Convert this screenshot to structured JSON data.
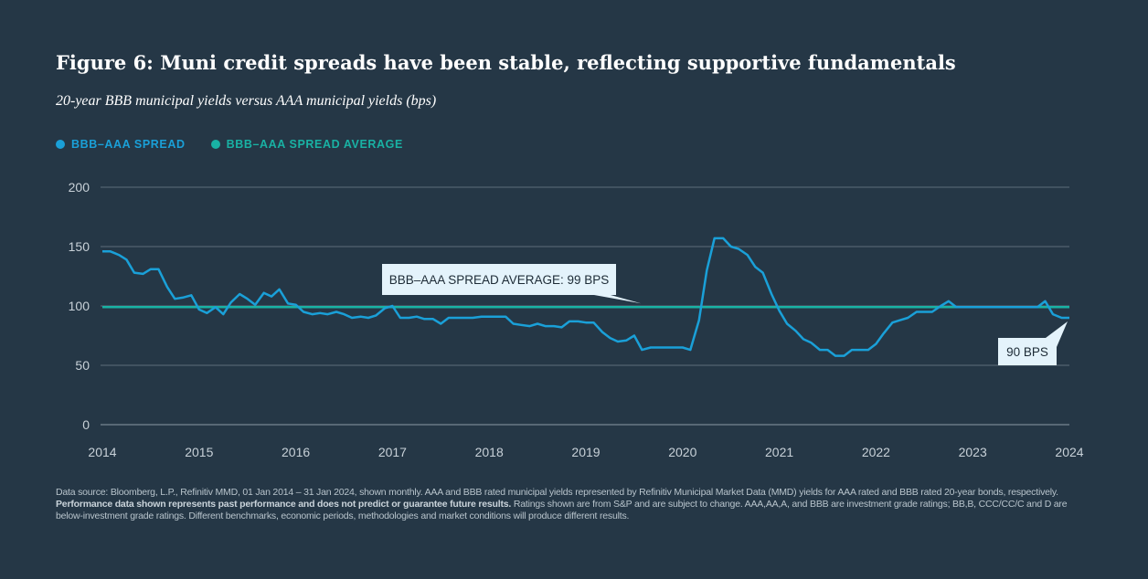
{
  "header": {
    "title": "Figure 6: Muni credit spreads have been stable, reflecting supportive fundamentals",
    "subtitle": "20-year BBB municipal yields versus AAA municipal yields (bps)"
  },
  "legend": [
    {
      "label": "BBB–AAA SPREAD",
      "color": "#1aa0d8"
    },
    {
      "label": "BBB–AAA SPREAD AVERAGE",
      "color": "#19b2a4"
    }
  ],
  "callouts": {
    "average_label": "BBB–AAA SPREAD AVERAGE: 99 BPS",
    "last_value_label": "90 BPS"
  },
  "chart_data": {
    "type": "line",
    "title": "Figure 6: Muni credit spreads have been stable, reflecting supportive fundamentals",
    "ylabel": "bps",
    "xlabel": "",
    "ylim": [
      0,
      200
    ],
    "yticks": [
      0,
      50,
      100,
      150,
      200
    ],
    "xlim": [
      2014,
      2024
    ],
    "xticks": [
      "2014",
      "2015",
      "2016",
      "2017",
      "2018",
      "2019",
      "2020",
      "2021",
      "2022",
      "2023",
      "2024"
    ],
    "grid": true,
    "series": [
      {
        "name": "BBB–AAA SPREAD",
        "color": "#1aa0d8",
        "points": [
          [
            2014.0,
            146
          ],
          [
            2014.08,
            146
          ],
          [
            2014.17,
            143
          ],
          [
            2014.25,
            139
          ],
          [
            2014.33,
            128
          ],
          [
            2014.42,
            127
          ],
          [
            2014.5,
            131
          ],
          [
            2014.58,
            131
          ],
          [
            2014.67,
            116
          ],
          [
            2014.75,
            106
          ],
          [
            2014.83,
            107
          ],
          [
            2014.92,
            109
          ],
          [
            2015.0,
            97
          ],
          [
            2015.08,
            94
          ],
          [
            2015.17,
            99
          ],
          [
            2015.25,
            93
          ],
          [
            2015.33,
            103
          ],
          [
            2015.42,
            110
          ],
          [
            2015.5,
            106
          ],
          [
            2015.58,
            101
          ],
          [
            2015.67,
            111
          ],
          [
            2015.75,
            108
          ],
          [
            2015.83,
            114
          ],
          [
            2015.92,
            102
          ],
          [
            2016.0,
            101
          ],
          [
            2016.08,
            95
          ],
          [
            2016.17,
            93
          ],
          [
            2016.25,
            94
          ],
          [
            2016.33,
            93
          ],
          [
            2016.42,
            95
          ],
          [
            2016.5,
            93
          ],
          [
            2016.58,
            90
          ],
          [
            2016.67,
            91
          ],
          [
            2016.75,
            90
          ],
          [
            2016.83,
            92
          ],
          [
            2016.92,
            98
          ],
          [
            2017.0,
            100
          ],
          [
            2017.08,
            90
          ],
          [
            2017.17,
            90
          ],
          [
            2017.25,
            91
          ],
          [
            2017.33,
            89
          ],
          [
            2017.42,
            89
          ],
          [
            2017.5,
            85
          ],
          [
            2017.58,
            90
          ],
          [
            2017.67,
            90
          ],
          [
            2017.75,
            90
          ],
          [
            2017.83,
            90
          ],
          [
            2017.92,
            91
          ],
          [
            2018.0,
            91
          ],
          [
            2018.08,
            91
          ],
          [
            2018.17,
            91
          ],
          [
            2018.25,
            85
          ],
          [
            2018.33,
            84
          ],
          [
            2018.42,
            83
          ],
          [
            2018.5,
            85
          ],
          [
            2018.58,
            83
          ],
          [
            2018.67,
            83
          ],
          [
            2018.75,
            82
          ],
          [
            2018.83,
            87
          ],
          [
            2018.92,
            87
          ],
          [
            2019.0,
            86
          ],
          [
            2019.08,
            86
          ],
          [
            2019.17,
            78
          ],
          [
            2019.25,
            73
          ],
          [
            2019.33,
            70
          ],
          [
            2019.42,
            71
          ],
          [
            2019.5,
            75
          ],
          [
            2019.58,
            63
          ],
          [
            2019.67,
            65
          ],
          [
            2019.75,
            65
          ],
          [
            2019.83,
            65
          ],
          [
            2019.92,
            65
          ],
          [
            2020.0,
            65
          ],
          [
            2020.08,
            63
          ],
          [
            2020.17,
            88
          ],
          [
            2020.25,
            130
          ],
          [
            2020.33,
            157
          ],
          [
            2020.42,
            157
          ],
          [
            2020.5,
            150
          ],
          [
            2020.58,
            148
          ],
          [
            2020.67,
            143
          ],
          [
            2020.75,
            133
          ],
          [
            2020.83,
            128
          ],
          [
            2020.92,
            110
          ],
          [
            2021.0,
            96
          ],
          [
            2021.08,
            85
          ],
          [
            2021.17,
            79
          ],
          [
            2021.25,
            72
          ],
          [
            2021.33,
            69
          ],
          [
            2021.42,
            63
          ],
          [
            2021.5,
            63
          ],
          [
            2021.58,
            58
          ],
          [
            2021.67,
            58
          ],
          [
            2021.75,
            63
          ],
          [
            2021.83,
            63
          ],
          [
            2021.92,
            63
          ],
          [
            2022.0,
            68
          ],
          [
            2022.08,
            77
          ],
          [
            2022.17,
            86
          ],
          [
            2022.25,
            88
          ],
          [
            2022.33,
            90
          ],
          [
            2022.42,
            95
          ],
          [
            2022.5,
            95
          ],
          [
            2022.58,
            95
          ],
          [
            2022.67,
            100
          ],
          [
            2022.75,
            104
          ],
          [
            2022.83,
            99
          ],
          [
            2022.92,
            99
          ],
          [
            2023.0,
            99
          ],
          [
            2023.08,
            99
          ],
          [
            2023.17,
            99
          ],
          [
            2023.25,
            99
          ],
          [
            2023.33,
            99
          ],
          [
            2023.42,
            99
          ],
          [
            2023.5,
            99
          ],
          [
            2023.58,
            99
          ],
          [
            2023.67,
            99
          ],
          [
            2023.75,
            104
          ],
          [
            2023.83,
            93
          ],
          [
            2023.92,
            90
          ],
          [
            2024.0,
            90
          ]
        ]
      },
      {
        "name": "BBB–AAA SPREAD AVERAGE",
        "color": "#19b2a4",
        "points": [
          [
            2014.0,
            99
          ],
          [
            2024.0,
            99
          ]
        ]
      }
    ],
    "annotations": [
      {
        "text": "BBB–AAA SPREAD AVERAGE: 99 BPS",
        "x": 2019.4,
        "y": 99
      },
      {
        "text": "90 BPS",
        "x": 2024.0,
        "y": 90
      }
    ]
  },
  "footnote": {
    "line1": "Data source: Bloomberg, L.P., Refinitiv MMD, 01 Jan 2014 – 31 Jan 2024, shown monthly. AAA and BBB rated municipal yields represented by Refinitiv Municipal Market Data (MMD) yields for AAA rated and BBB rated 20-year bonds, respectively.",
    "bold": "Performance data shown represents past performance and does not predict or guarantee future results.",
    "line2": " Ratings shown are from S&P and are subject to change. AAA,AA,A, and BBB are investment grade ratings; BB,B, CCC/CC/C and D are below-investment grade ratings. Different benchmarks, economic periods, methodologies and market conditions will produce different results."
  }
}
